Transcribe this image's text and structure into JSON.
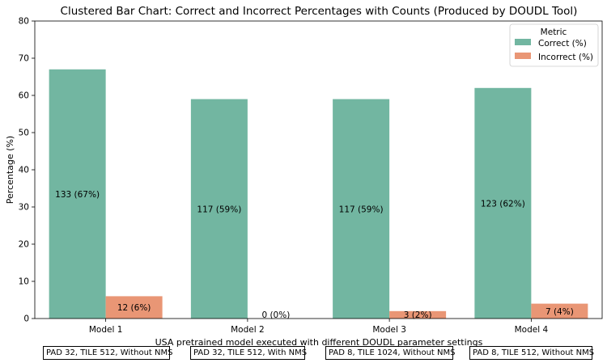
{
  "chart_data": {
    "type": "bar",
    "title": "Clustered Bar Chart: Correct and Incorrect Percentages with Counts (Produced by DOUDL Tool)",
    "xlabel": "USA pretrained model executed with different DOUDL parameter settings",
    "ylabel": "Percentage (%)",
    "ylim": [
      0,
      80
    ],
    "yticks": [
      0,
      10,
      20,
      30,
      40,
      50,
      60,
      70,
      80
    ],
    "categories": [
      "Model 1",
      "Model 2",
      "Model 3",
      "Model 4"
    ],
    "series": [
      {
        "name": "Correct (%)",
        "color": "#72b6a1",
        "values": [
          67,
          59,
          59,
          62
        ],
        "labels": [
          "133 (67%)",
          "117 (59%)",
          "117 (59%)",
          "123 (62%)"
        ]
      },
      {
        "name": "Incorrect (%)",
        "color": "#e99675",
        "values": [
          6,
          0,
          2,
          4
        ],
        "labels": [
          "12 (6%)",
          "0 (0%)",
          "3 (2%)",
          "7 (4%)"
        ]
      }
    ],
    "legend": {
      "title": "Metric",
      "placement": "top-right"
    },
    "grid": false,
    "category_notes": [
      "PAD 32, TILE 512, Without NMS",
      "PAD 32, TILE 512, With NMS",
      "PAD 8, TILE 1024, Without NMS",
      "PAD 8, TILE 512, Without NMS"
    ]
  }
}
